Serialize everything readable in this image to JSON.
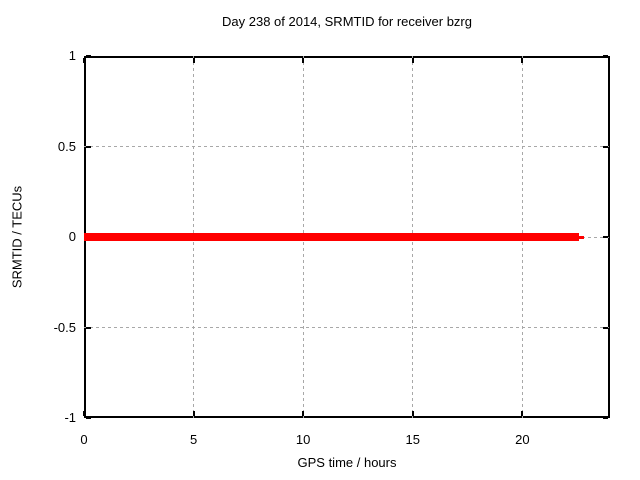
{
  "window": {
    "background": "#ffffff",
    "text_color": "#000000"
  },
  "chart_data": {
    "type": "line",
    "title": "Day 238 of 2014, SRMTID for receiver bzrg",
    "xlabel": "GPS time / hours",
    "ylabel": "SRMTID / TECUs",
    "xlim": [
      0,
      24
    ],
    "ylim": [
      -1,
      1
    ],
    "xticks": [
      {
        "value": 0,
        "label": "0"
      },
      {
        "value": 5,
        "label": "5"
      },
      {
        "value": 10,
        "label": "10"
      },
      {
        "value": 15,
        "label": "15"
      },
      {
        "value": 20,
        "label": "20"
      }
    ],
    "yticks": [
      {
        "value": 1,
        "label": "1"
      },
      {
        "value": 0.5,
        "label": "0.5"
      },
      {
        "value": 0,
        "label": "0"
      },
      {
        "value": -0.5,
        "label": "-0.5"
      },
      {
        "value": -1,
        "label": "-1"
      }
    ],
    "grid": true,
    "grid_color": "#a8a8a8",
    "border_color": "#000000",
    "legend": "none",
    "series": [
      {
        "name": "SRMTID",
        "color": "#ff0000",
        "y_value": 0,
        "x_start": 0,
        "x_end": 22.8,
        "segments": [
          {
            "x0": 0,
            "x1": 22.6,
            "y": 0,
            "thickness_px": 8
          },
          {
            "x0": 22.6,
            "x1": 22.8,
            "y": 0,
            "thickness_px": 3
          }
        ]
      }
    ]
  }
}
